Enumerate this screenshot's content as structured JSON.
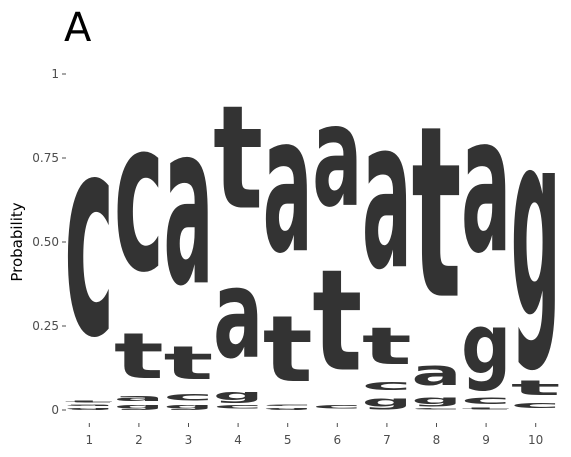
{
  "panel_label": "A",
  "chart_data": {
    "type": "sequence-logo",
    "title": "",
    "xlabel": "",
    "ylabel": "Probability",
    "ylim": [
      0,
      1
    ],
    "y_ticks": [
      "0",
      "0.25",
      "0.50",
      "0.75",
      "1"
    ],
    "x_ticks": [
      "1",
      "2",
      "3",
      "4",
      "5",
      "6",
      "7",
      "8",
      "9",
      "10"
    ],
    "grid": false,
    "letter_color": "#333333",
    "positions": [
      {
        "pos": "1",
        "stack": [
          {
            "letter": "g",
            "value": 0.01
          },
          {
            "letter": "a",
            "value": 0.01
          },
          {
            "letter": "t",
            "value": 0.01
          },
          {
            "letter": "c",
            "value": 0.97
          }
        ]
      },
      {
        "pos": "2",
        "stack": [
          {
            "letter": "g",
            "value": 0.02
          },
          {
            "letter": "a",
            "value": 0.03
          },
          {
            "letter": "t",
            "value": 0.22
          },
          {
            "letter": "c",
            "value": 0.73
          }
        ]
      },
      {
        "pos": "3",
        "stack": [
          {
            "letter": "g",
            "value": 0.02
          },
          {
            "letter": "c",
            "value": 0.04
          },
          {
            "letter": "t",
            "value": 0.16
          },
          {
            "letter": "a",
            "value": 0.78
          }
        ]
      },
      {
        "pos": "4",
        "stack": [
          {
            "letter": "c",
            "value": 0.02
          },
          {
            "letter": "g",
            "value": 0.05
          },
          {
            "letter": "a",
            "value": 0.43
          },
          {
            "letter": "t",
            "value": 0.5
          }
        ]
      },
      {
        "pos": "5",
        "stack": [
          {
            "letter": "g",
            "value": 0.01
          },
          {
            "letter": "c",
            "value": 0.01
          },
          {
            "letter": "t",
            "value": 0.32
          },
          {
            "letter": "a",
            "value": 0.66
          }
        ]
      },
      {
        "pos": "6",
        "stack": [
          {
            "letter": "c",
            "value": 0.02
          },
          {
            "letter": "t",
            "value": 0.49
          },
          {
            "letter": "a",
            "value": 0.49
          }
        ]
      },
      {
        "pos": "7",
        "stack": [
          {
            "letter": "g",
            "value": 0.05
          },
          {
            "letter": "c",
            "value": 0.05
          },
          {
            "letter": "t",
            "value": 0.18
          },
          {
            "letter": "a",
            "value": 0.72
          }
        ]
      },
      {
        "pos": "8",
        "stack": [
          {
            "letter": "c",
            "value": 0.01
          },
          {
            "letter": "g",
            "value": 0.04
          },
          {
            "letter": "a",
            "value": 0.12
          },
          {
            "letter": "t",
            "value": 0.83
          }
        ]
      },
      {
        "pos": "9",
        "stack": [
          {
            "letter": "t",
            "value": 0.01
          },
          {
            "letter": "c",
            "value": 0.04
          },
          {
            "letter": "g",
            "value": 0.29
          },
          {
            "letter": "a",
            "value": 0.66
          }
        ]
      },
      {
        "pos": "10",
        "stack": [
          {
            "letter": "c",
            "value": 0.03
          },
          {
            "letter": "t",
            "value": 0.07
          },
          {
            "letter": "g",
            "value": 0.9
          }
        ]
      }
    ]
  }
}
